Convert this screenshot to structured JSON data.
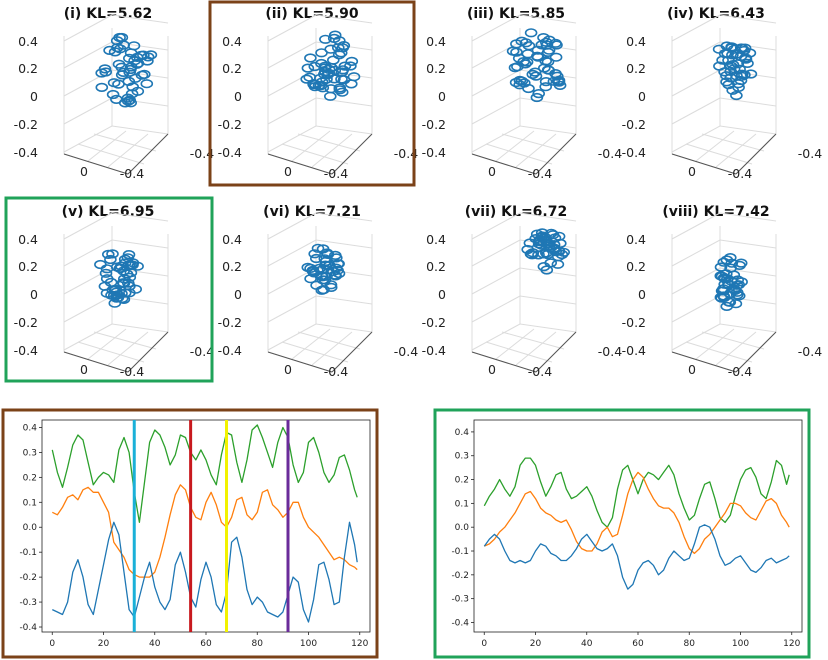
{
  "chart_data": [
    {
      "type": "scatter3d",
      "panels": [
        {
          "title": "(i) KL=5.62",
          "highlight": "none"
        },
        {
          "title": "(ii) KL=5.90",
          "highlight": "brown"
        },
        {
          "title": "(iii) KL=5.85",
          "highlight": "none"
        },
        {
          "title": "(iv) KL=6.43",
          "highlight": "none"
        },
        {
          "title": "(v) KL=6.95",
          "highlight": "green"
        },
        {
          "title": "(vi) KL=7.21",
          "highlight": "none"
        },
        {
          "title": "(vii) KL=6.72",
          "highlight": "none"
        },
        {
          "title": "(viii) KL=7.42",
          "highlight": "none"
        }
      ],
      "z_ticks": [
        "0.4",
        "0.2",
        "0",
        "-0.2",
        "-0.4"
      ],
      "x_ticks": [
        "0",
        "-0.4"
      ],
      "y_ticks": [
        "-0.4"
      ],
      "marker": "open-circle",
      "color": "#1f77b4"
    },
    {
      "type": "line",
      "highlight": "brown",
      "x_ticks": [
        0,
        20,
        40,
        60,
        80,
        100,
        120
      ],
      "y_ticks": [
        "0.4",
        "0.3",
        "0.2",
        "0.1",
        "0.0",
        "-0.1",
        "-0.2",
        "-0.3",
        "-0.4"
      ],
      "xlim": [
        -4,
        124
      ],
      "ylim": [
        -0.42,
        0.43
      ],
      "series": [
        {
          "name": "green",
          "color": "#2ca02c",
          "x": [
            0,
            2,
            4,
            6,
            8,
            10,
            12,
            14,
            16,
            18,
            20,
            22,
            24,
            26,
            28,
            30,
            32,
            34,
            36,
            38,
            40,
            42,
            44,
            46,
            48,
            50,
            52,
            54,
            56,
            58,
            60,
            62,
            64,
            66,
            68,
            70,
            72,
            74,
            76,
            78,
            80,
            82,
            84,
            86,
            88,
            90,
            92,
            94,
            96,
            98,
            100,
            102,
            104,
            106,
            108,
            110,
            112,
            114,
            116,
            118,
            119
          ],
          "values": [
            0.31,
            0.22,
            0.16,
            0.24,
            0.33,
            0.37,
            0.35,
            0.26,
            0.17,
            0.2,
            0.22,
            0.21,
            0.18,
            0.31,
            0.36,
            0.3,
            0.14,
            0.02,
            0.18,
            0.34,
            0.39,
            0.37,
            0.32,
            0.25,
            0.29,
            0.37,
            0.36,
            0.3,
            0.27,
            0.31,
            0.27,
            0.21,
            0.17,
            0.29,
            0.38,
            0.37,
            0.26,
            0.18,
            0.27,
            0.39,
            0.41,
            0.36,
            0.3,
            0.24,
            0.34,
            0.4,
            0.36,
            0.25,
            0.18,
            0.22,
            0.34,
            0.36,
            0.3,
            0.22,
            0.18,
            0.21,
            0.28,
            0.29,
            0.23,
            0.15,
            0.12
          ]
        },
        {
          "name": "orange",
          "color": "#ff7f0e",
          "x": [
            0,
            2,
            4,
            6,
            8,
            10,
            12,
            14,
            16,
            18,
            20,
            22,
            24,
            26,
            28,
            30,
            32,
            34,
            36,
            38,
            40,
            42,
            44,
            46,
            48,
            50,
            52,
            54,
            56,
            58,
            60,
            62,
            64,
            66,
            68,
            70,
            72,
            74,
            76,
            78,
            80,
            82,
            84,
            86,
            88,
            90,
            92,
            94,
            96,
            98,
            100,
            102,
            104,
            106,
            108,
            110,
            112,
            114,
            116,
            118,
            119
          ],
          "values": [
            0.06,
            0.05,
            0.08,
            0.12,
            0.13,
            0.11,
            0.15,
            0.16,
            0.14,
            0.14,
            0.1,
            0.06,
            -0.06,
            -0.09,
            -0.12,
            -0.17,
            -0.19,
            -0.2,
            -0.2,
            -0.2,
            -0.18,
            -0.12,
            -0.04,
            0.05,
            0.13,
            0.17,
            0.15,
            0.08,
            0.04,
            0.03,
            0.1,
            0.14,
            0.09,
            0.02,
            0.0,
            0.04,
            0.11,
            0.12,
            0.05,
            0.03,
            0.06,
            0.14,
            0.15,
            0.09,
            0.07,
            0.04,
            0.06,
            0.1,
            0.1,
            0.04,
            0.0,
            -0.02,
            -0.04,
            -0.07,
            -0.1,
            -0.13,
            -0.12,
            -0.13,
            -0.15,
            -0.16,
            -0.17
          ]
        },
        {
          "name": "blue",
          "color": "#1f77b4",
          "x": [
            0,
            2,
            4,
            6,
            8,
            10,
            12,
            14,
            16,
            18,
            20,
            22,
            24,
            26,
            28,
            30,
            32,
            34,
            36,
            38,
            40,
            42,
            44,
            46,
            48,
            50,
            52,
            54,
            56,
            58,
            60,
            62,
            64,
            66,
            68,
            70,
            72,
            74,
            76,
            78,
            80,
            82,
            84,
            86,
            88,
            90,
            92,
            94,
            96,
            98,
            100,
            102,
            104,
            106,
            108,
            110,
            112,
            114,
            116,
            118,
            119
          ],
          "values": [
            -0.33,
            -0.34,
            -0.35,
            -0.3,
            -0.18,
            -0.13,
            -0.2,
            -0.31,
            -0.35,
            -0.25,
            -0.15,
            -0.05,
            0.02,
            -0.03,
            -0.18,
            -0.33,
            -0.36,
            -0.28,
            -0.2,
            -0.14,
            -0.24,
            -0.3,
            -0.33,
            -0.29,
            -0.15,
            -0.1,
            -0.18,
            -0.28,
            -0.32,
            -0.21,
            -0.14,
            -0.2,
            -0.31,
            -0.34,
            -0.26,
            -0.06,
            -0.04,
            -0.12,
            -0.25,
            -0.31,
            -0.28,
            -0.3,
            -0.34,
            -0.35,
            -0.36,
            -0.34,
            -0.27,
            -0.2,
            -0.22,
            -0.33,
            -0.38,
            -0.29,
            -0.15,
            -0.14,
            -0.21,
            -0.31,
            -0.3,
            -0.12,
            0.02,
            -0.07,
            -0.14
          ]
        }
      ],
      "vlines": [
        {
          "x": 32,
          "color": "#1ab0d8"
        },
        {
          "x": 54,
          "color": "#c8191e"
        },
        {
          "x": 68,
          "color": "#f2f200"
        },
        {
          "x": 92,
          "color": "#6a2b9a"
        }
      ]
    },
    {
      "type": "line",
      "highlight": "green",
      "x_ticks": [
        0,
        20,
        40,
        60,
        80,
        100,
        120
      ],
      "y_ticks": [
        "0.4",
        "0.3",
        "0.2",
        "0.1",
        "0.0",
        "-0.1",
        "-0.2",
        "-0.3",
        "-0.4"
      ],
      "xlim": [
        -4,
        124
      ],
      "ylim": [
        -0.44,
        0.45
      ],
      "series": [
        {
          "name": "green",
          "color": "#2ca02c",
          "x": [
            0,
            2,
            4,
            6,
            8,
            10,
            12,
            14,
            16,
            18,
            20,
            22,
            24,
            26,
            28,
            30,
            32,
            34,
            36,
            38,
            40,
            42,
            44,
            46,
            48,
            50,
            52,
            54,
            56,
            58,
            60,
            62,
            64,
            66,
            68,
            70,
            72,
            74,
            76,
            78,
            80,
            82,
            84,
            86,
            88,
            90,
            92,
            94,
            96,
            98,
            100,
            102,
            104,
            106,
            108,
            110,
            112,
            114,
            116,
            118,
            119
          ],
          "values": [
            0.09,
            0.13,
            0.16,
            0.2,
            0.16,
            0.13,
            0.17,
            0.26,
            0.29,
            0.29,
            0.26,
            0.19,
            0.13,
            0.17,
            0.22,
            0.23,
            0.16,
            0.12,
            0.13,
            0.15,
            0.17,
            0.13,
            0.07,
            0.02,
            0.0,
            0.04,
            0.16,
            0.24,
            0.26,
            0.2,
            0.14,
            0.2,
            0.23,
            0.22,
            0.2,
            0.23,
            0.26,
            0.22,
            0.14,
            0.08,
            0.03,
            0.05,
            0.12,
            0.18,
            0.19,
            0.12,
            0.04,
            0.02,
            0.05,
            0.13,
            0.2,
            0.24,
            0.25,
            0.21,
            0.14,
            0.12,
            0.19,
            0.28,
            0.26,
            0.18,
            0.22
          ]
        },
        {
          "name": "orange",
          "color": "#ff7f0e",
          "x": [
            0,
            2,
            4,
            6,
            8,
            10,
            12,
            14,
            16,
            18,
            20,
            22,
            24,
            26,
            28,
            30,
            32,
            34,
            36,
            38,
            40,
            42,
            44,
            46,
            48,
            50,
            52,
            54,
            56,
            58,
            60,
            62,
            64,
            66,
            68,
            70,
            72,
            74,
            76,
            78,
            80,
            82,
            84,
            86,
            88,
            90,
            92,
            94,
            96,
            98,
            100,
            102,
            104,
            106,
            108,
            110,
            112,
            114,
            116,
            118,
            119
          ],
          "values": [
            -0.08,
            -0.07,
            -0.05,
            -0.02,
            0.0,
            0.03,
            0.06,
            0.1,
            0.14,
            0.15,
            0.12,
            0.08,
            0.06,
            0.05,
            0.03,
            0.02,
            0.03,
            -0.01,
            -0.06,
            -0.09,
            -0.1,
            -0.1,
            -0.07,
            -0.02,
            0.0,
            -0.04,
            -0.03,
            0.05,
            0.14,
            0.2,
            0.23,
            0.21,
            0.16,
            0.12,
            0.09,
            0.08,
            0.08,
            0.06,
            0.02,
            -0.04,
            -0.09,
            -0.11,
            -0.09,
            -0.05,
            -0.03,
            0.0,
            0.03,
            0.06,
            0.1,
            0.1,
            0.09,
            0.06,
            0.04,
            0.03,
            0.07,
            0.11,
            0.12,
            0.1,
            0.05,
            0.02,
            0.0
          ]
        },
        {
          "name": "blue",
          "color": "#1f77b4",
          "x": [
            0,
            2,
            4,
            6,
            8,
            10,
            12,
            14,
            16,
            18,
            20,
            22,
            24,
            26,
            28,
            30,
            32,
            34,
            36,
            38,
            40,
            42,
            44,
            46,
            48,
            50,
            52,
            54,
            56,
            58,
            60,
            62,
            64,
            66,
            68,
            70,
            72,
            74,
            76,
            78,
            80,
            82,
            84,
            86,
            88,
            90,
            92,
            94,
            96,
            98,
            100,
            102,
            104,
            106,
            108,
            110,
            112,
            114,
            116,
            118,
            119
          ],
          "values": [
            -0.08,
            -0.05,
            -0.03,
            -0.05,
            -0.1,
            -0.14,
            -0.15,
            -0.14,
            -0.15,
            -0.14,
            -0.1,
            -0.07,
            -0.08,
            -0.11,
            -0.12,
            -0.14,
            -0.14,
            -0.12,
            -0.09,
            -0.05,
            -0.03,
            -0.06,
            -0.09,
            -0.1,
            -0.09,
            -0.07,
            -0.12,
            -0.21,
            -0.26,
            -0.24,
            -0.18,
            -0.15,
            -0.14,
            -0.16,
            -0.2,
            -0.18,
            -0.13,
            -0.1,
            -0.12,
            -0.14,
            -0.13,
            -0.07,
            0.0,
            0.01,
            0.0,
            -0.05,
            -0.12,
            -0.16,
            -0.15,
            -0.13,
            -0.12,
            -0.15,
            -0.18,
            -0.19,
            -0.17,
            -0.14,
            -0.13,
            -0.15,
            -0.14,
            -0.13,
            -0.12
          ]
        }
      ],
      "vlines": []
    }
  ],
  "colors": {
    "brown_frame": "#7b4218",
    "green_frame": "#20a35a"
  }
}
